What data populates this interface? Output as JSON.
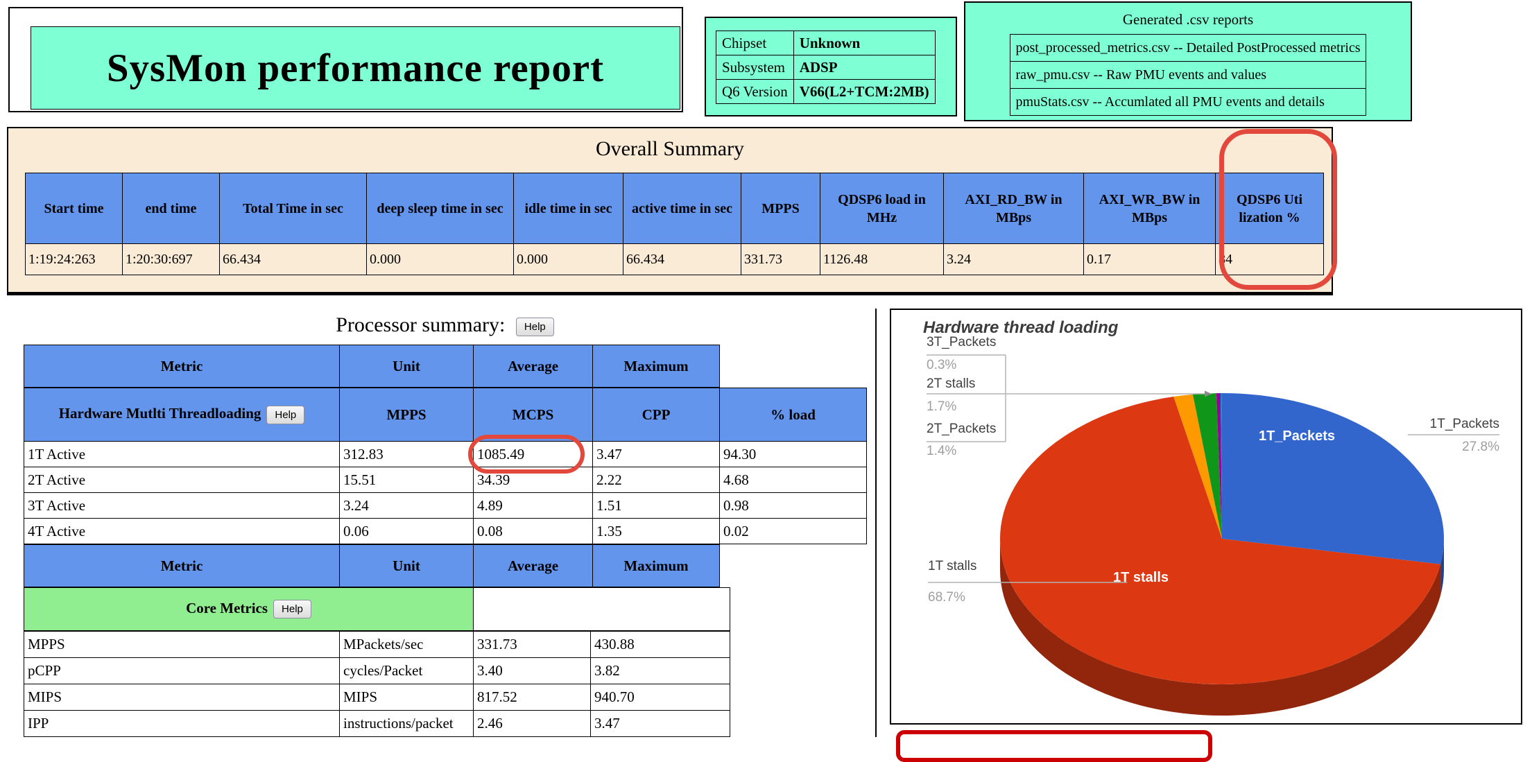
{
  "colors": {
    "aquamarine": "#7FFFD4",
    "header_blue": "#6495ED",
    "summary_bg": "#FAEBD7",
    "section_green": "#90EE90",
    "annotation_red": "#E2483B",
    "annotation_red_dark": "#CC0000"
  },
  "header": {
    "title": "SysMon performance report",
    "device_info": {
      "rows": [
        {
          "label": "Chipset",
          "value": "Unknown"
        },
        {
          "label": "Subsystem",
          "value": "ADSP"
        },
        {
          "label": "Q6 Version",
          "value": "V66(L2+TCM:2MB)"
        }
      ]
    },
    "reports": {
      "title": "Generated .csv reports",
      "items": [
        "post_processed_metrics.csv -- Detailed PostProcessed metrics",
        "raw_pmu.csv -- Raw PMU events and values",
        "pmuStats.csv -- Accumlated all PMU events and details"
      ]
    }
  },
  "overall_summary": {
    "title": "Overall Summary",
    "columns": [
      "Start time",
      "end time",
      "Total Time in sec",
      "deep sleep time in sec",
      "idle time in sec",
      "active time in sec",
      "MPPS",
      "QDSP6 load in MHz",
      "AXI_RD_BW in MBps",
      "AXI_WR_BW in MBps",
      "QDSP6 Utilization %"
    ],
    "values": [
      "1:19:24:263",
      "1:20:30:697",
      "66.434",
      "0.000",
      "0.000",
      "66.434",
      "331.73",
      "1126.48",
      "3.24",
      "0.17",
      "84"
    ]
  },
  "processor_summary": {
    "title": "Processor summary:",
    "help_label": "Help",
    "hmt": {
      "header": [
        "Metric",
        "Unit",
        "Average",
        "Maximum"
      ],
      "section_label": "Hardware Mutlti Threadloading",
      "subheader_cols": [
        "MPPS",
        "MCPS",
        "CPP",
        "% load"
      ],
      "rows": [
        [
          "1T Active",
          "312.83",
          "1085.49",
          "3.47",
          "94.30"
        ],
        [
          "2T Active",
          "15.51",
          "34.39",
          "2.22",
          "4.68"
        ],
        [
          "3T Active",
          "3.24",
          "4.89",
          "1.51",
          "0.98"
        ],
        [
          "4T Active",
          "0.06",
          "0.08",
          "1.35",
          "0.02"
        ]
      ]
    },
    "core": {
      "header": [
        "Metric",
        "Unit",
        "Average",
        "Maximum"
      ],
      "section_label": "Core Metrics",
      "rows": [
        [
          "MPPS",
          "MPackets/sec",
          "331.73",
          "430.88"
        ],
        [
          "pCPP",
          "cycles/Packet",
          "3.40",
          "3.82"
        ],
        [
          "MIPS",
          "MIPS",
          "817.52",
          "940.70"
        ],
        [
          "IPP",
          "instructions/packet",
          "2.46",
          "3.47"
        ]
      ]
    }
  },
  "chart_data": {
    "type": "pie",
    "is3d": true,
    "title": "Hardware thread loading",
    "legend": "labeled-callouts",
    "slices": [
      {
        "label": "1T_Packets",
        "value": 27.8,
        "pct_label": "27.8%",
        "color": "#3366CC"
      },
      {
        "label": "1T stalls",
        "value": 68.7,
        "pct_label": "68.7%",
        "color": "#DC3912"
      },
      {
        "label": "2T_Packets",
        "value": 1.4,
        "pct_label": "1.4%",
        "color": "#FF9900"
      },
      {
        "label": "2T stalls",
        "value": 1.7,
        "pct_label": "1.7%",
        "color": "#109618"
      },
      {
        "label": "3T_Packets",
        "value": 0.3,
        "pct_label": "0.3%",
        "color": "#990099"
      },
      {
        "label": "",
        "value": 0.1,
        "pct_label": "",
        "color": "#0099C6"
      }
    ]
  }
}
